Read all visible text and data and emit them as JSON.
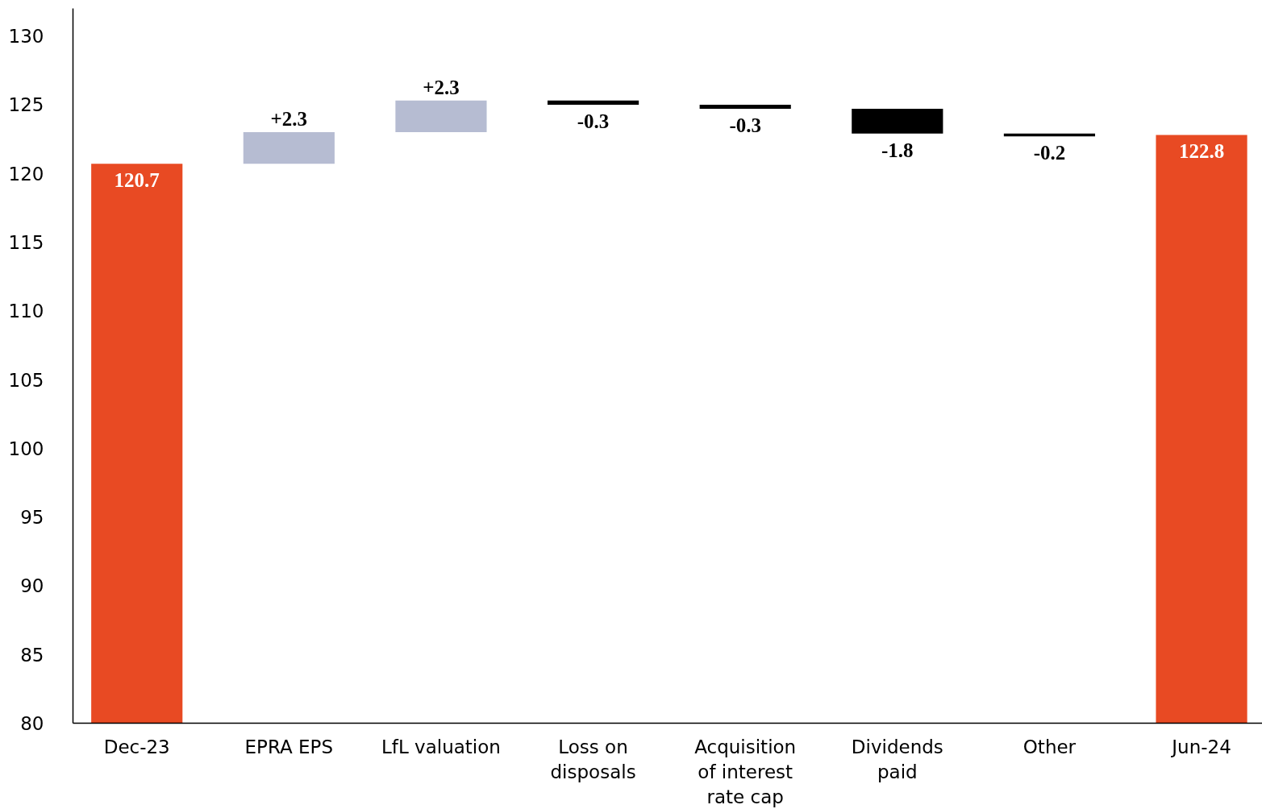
{
  "chart_data": {
    "type": "bar",
    "categories": [
      "Dec-23",
      "EPRA EPS",
      "LfL valuation",
      "Loss on disposals",
      "Acquisition of interest rate cap",
      "Dividends paid",
      "Other",
      "Jun-24"
    ],
    "base": [
      80,
      120.7,
      123.0,
      125.3,
      125.0,
      124.7,
      122.9,
      80
    ],
    "values": [
      40.7,
      2.3,
      2.3,
      -0.3,
      -0.3,
      -1.8,
      -0.2,
      42.8
    ],
    "colors": [
      "#e84a23",
      "#b6bcd2",
      "#b6bcd2",
      "#000000",
      "#000000",
      "#000000",
      "#000000",
      "#e84a23"
    ],
    "value_labels": [
      "120.7",
      "+2.3",
      "+2.3",
      "-0.3",
      "-0.3",
      "-1.8",
      "-0.2",
      "122.8"
    ],
    "ylim": [
      80,
      132
    ],
    "yticks": [
      80,
      85,
      90,
      95,
      100,
      105,
      110,
      115,
      120,
      125,
      130
    ],
    "grid": false
  }
}
